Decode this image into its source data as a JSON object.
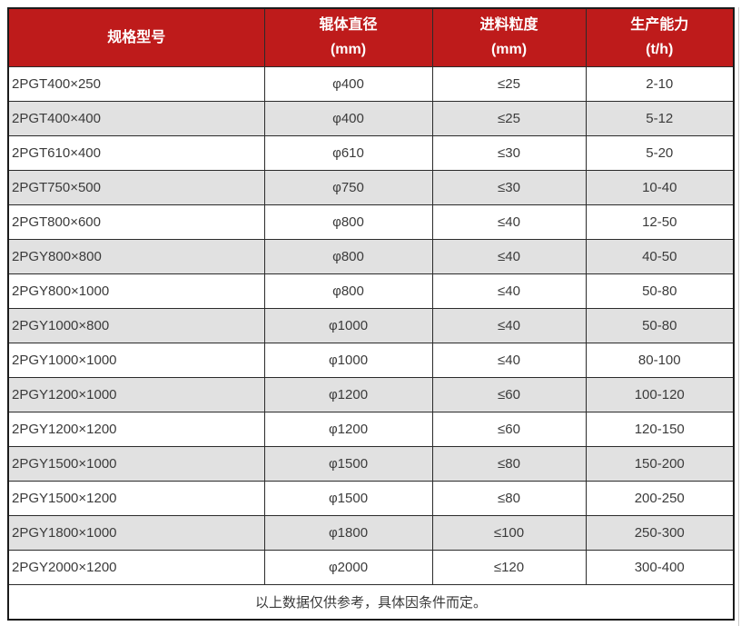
{
  "table": {
    "columns": [
      {
        "key": "model",
        "label": "规格型号",
        "unit": ""
      },
      {
        "key": "roller-diameter",
        "label": "辊体直径",
        "unit": "(mm)"
      },
      {
        "key": "feed-size",
        "label": "进料粒度",
        "unit": "(mm)"
      },
      {
        "key": "capacity",
        "label": "生产能力",
        "unit": "(t/h)"
      }
    ],
    "rows": [
      [
        "2PGT400×250",
        "φ400",
        "≤25",
        "2-10"
      ],
      [
        "2PGT400×400",
        "φ400",
        "≤25",
        "5-12"
      ],
      [
        "2PGT610×400",
        "φ610",
        "≤30",
        "5-20"
      ],
      [
        "2PGT750×500",
        "φ750",
        "≤30",
        "10-40"
      ],
      [
        "2PGT800×600",
        "φ800",
        "≤40",
        "12-50"
      ],
      [
        "2PGY800×800",
        "φ800",
        "≤40",
        "40-50"
      ],
      [
        "2PGY800×1000",
        "φ800",
        "≤40",
        "50-80"
      ],
      [
        "2PGY1000×800",
        "φ1000",
        "≤40",
        "50-80"
      ],
      [
        "2PGY1000×1000",
        "φ1000",
        "≤40",
        "80-100"
      ],
      [
        "2PGY1200×1000",
        "φ1200",
        "≤60",
        "100-120"
      ],
      [
        "2PGY1200×1200",
        "φ1200",
        "≤60",
        "120-150"
      ],
      [
        "2PGY1500×1000",
        "φ1500",
        "≤80",
        "150-200"
      ],
      [
        "2PGY1500×1200",
        "φ1500",
        "≤80",
        "200-250"
      ],
      [
        "2PGY1800×1000",
        "φ1800",
        "≤100",
        "250-300"
      ],
      [
        "2PGY2000×1200",
        "φ2000",
        "≤120",
        "300-400"
      ]
    ],
    "footer_note": "以上数据仅供参考，具体因条件而定。"
  },
  "colors": {
    "header_bg": "#BE1B1B",
    "header_text": "#FFFFFF",
    "row_bg": "#FFFFFF",
    "row_alt_bg": "#E1E1E1",
    "grid_border": "#2B2B2B",
    "outer_border": "#1B1B1B",
    "body_text": "#3B3B3B",
    "page_edge_line": "#C9C9C9"
  }
}
